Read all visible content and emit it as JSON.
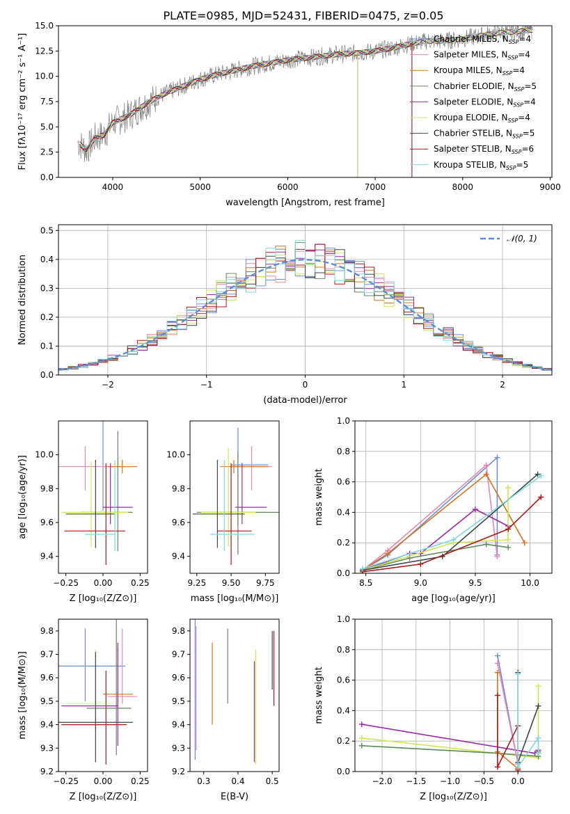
{
  "figure": {
    "title": "PLATE=0985, MJD=52431, FIBERID=0475, z=0.05"
  },
  "chart_data": [
    {
      "id": "spectrum",
      "type": "line",
      "xlabel": "wavelength [Angstrom, rest frame]",
      "ylabel": "Flux [fλ10⁻¹⁷ erg cm⁻² s⁻¹ A⁻¹]",
      "xlim": [
        3380,
        9020
      ],
      "ylim": [
        0,
        15
      ],
      "xticks": [
        4000,
        5000,
        6000,
        7000,
        8000,
        9000
      ],
      "yticks": [
        0.0,
        2.5,
        5.0,
        7.5,
        10.0,
        12.5,
        15.0
      ],
      "grid": false,
      "legend_position": "top-right",
      "data_envelope": {
        "x": [
          3600,
          3700,
          3800,
          3900,
          4000,
          4200,
          4400,
          4600,
          4800,
          5000,
          5200,
          5400,
          5600,
          5800,
          6000,
          6200,
          6400,
          6600,
          6800,
          7000,
          7200,
          7400,
          7600,
          7800,
          8000,
          8200,
          8400,
          8600,
          8800
        ],
        "y": [
          3.5,
          2.7,
          3.9,
          4.2,
          5.4,
          6.2,
          7.4,
          8.3,
          9.0,
          9.7,
          10.2,
          10.6,
          11.0,
          11.3,
          11.6,
          11.8,
          12.0,
          12.2,
          12.3,
          12.5,
          12.8,
          13.2,
          13.5,
          13.5,
          13.7,
          14.0,
          14.3,
          14.4,
          14.6
        ]
      },
      "legend": [
        {
          "label": "Chabrier MILES, N",
          "sub": "SSP",
          "suffix": "=4",
          "color": "#6a8fd8"
        },
        {
          "label": "Salpeter MILES, N",
          "sub": "SSP",
          "suffix": "=4",
          "color": "#e887b2"
        },
        {
          "label": "Kroupa MILES, N",
          "sub": "SSP",
          "suffix": "=4",
          "color": "#d9711b"
        },
        {
          "label": "Chabrier ELODIE, N",
          "sub": "SSP",
          "suffix": "=5",
          "color": "#5d8a5a"
        },
        {
          "label": "Salpeter ELODIE, N",
          "sub": "SSP",
          "suffix": "=4",
          "color": "#9b28a8"
        },
        {
          "label": "Kroupa ELODIE, N",
          "sub": "SSP",
          "suffix": "=4",
          "color": "#d0e84e"
        },
        {
          "label": "Chabrier STELIB, N",
          "sub": "SSP",
          "suffix": "=5",
          "color": "#37474a"
        },
        {
          "label": "Salpeter STELIB, N",
          "sub": "SSP",
          "suffix": "=6",
          "color": "#b01414"
        },
        {
          "label": "Kroupa STELIB, N",
          "sub": "SSP",
          "suffix": "=5",
          "color": "#7fd8dd"
        }
      ]
    },
    {
      "id": "residual-hist",
      "type": "line",
      "xlabel": "(data-model)/error",
      "ylabel": "Normed distribution",
      "xlim": [
        -2.5,
        2.5
      ],
      "ylim": [
        0,
        0.52
      ],
      "xticks": [
        -2,
        -1,
        0,
        1,
        2
      ],
      "xtick_labels": [
        "−2",
        "−1",
        "0",
        "1",
        "2"
      ],
      "yticks": [
        0.0,
        0.1,
        0.2,
        0.3,
        0.4,
        0.5
      ],
      "grid": true,
      "legend_position": "top-right",
      "gaussian_label": "𝒩(0, 1)",
      "gaussian_color": "#5b8ed6"
    },
    {
      "id": "age-vs-Z",
      "type": "scatter",
      "xlabel": "Z [log₁₀(Z/Z⊙)]",
      "ylabel": "age  [log₁₀(age/yr)]",
      "xlim": [
        -0.3,
        0.3
      ],
      "ylim": [
        9.3,
        10.2
      ],
      "xticks": [
        -0.25,
        0.0,
        0.25
      ],
      "xtick_labels": [
        "−0.25",
        "0.00",
        "0.25"
      ],
      "yticks": [
        9.4,
        9.6,
        9.8,
        10.0
      ],
      "points": [
        {
          "x": 0.0,
          "y": 9.94,
          "xerr": [
            0.0,
            0.0
          ],
          "yerr": [
            0.27,
            0.35
          ]
        },
        {
          "x": -0.12,
          "y": 9.93,
          "xerr": [
            0.27,
            0.27
          ],
          "yerr": [
            0.14,
            0.12
          ]
        },
        {
          "x": 0.13,
          "y": 9.93,
          "xerr": [
            0.1,
            0.1
          ],
          "yerr": [
            0.04,
            0.04
          ]
        },
        {
          "x": 0.1,
          "y": 9.66,
          "xerr": [
            0.25,
            0.1
          ],
          "yerr": [
            0.23,
            0.48
          ]
        },
        {
          "x": 0.05,
          "y": 9.69,
          "xerr": [
            0.05,
            0.15
          ],
          "yerr": [
            0.1,
            0.26
          ]
        },
        {
          "x": -0.08,
          "y": 9.66,
          "xerr": [
            0.2,
            0.25
          ],
          "yerr": [
            0.2,
            0.3
          ]
        },
        {
          "x": -0.05,
          "y": 9.65,
          "xerr": [
            0.2,
            0.13
          ],
          "yerr": [
            0.2,
            0.32
          ]
        },
        {
          "x": 0.02,
          "y": 9.55,
          "xerr": [
            0.28,
            0.13
          ],
          "yerr": [
            0.2,
            0.4
          ]
        },
        {
          "x": 0.08,
          "y": 9.53,
          "xerr": [
            0.2,
            0.0
          ],
          "yerr": [
            0.1,
            0.44
          ]
        }
      ]
    },
    {
      "id": "age-vs-mass",
      "type": "scatter",
      "xlabel": "mass [log₁₀(M/M⊙)]",
      "ylabel": "",
      "xlim": [
        9.2,
        9.85
      ],
      "ylim": [
        9.3,
        10.2
      ],
      "xticks": [
        9.25,
        9.5,
        9.75
      ],
      "xtick_labels": [
        "9.25",
        "9.50",
        "9.75"
      ],
      "yticks": [
        9.4,
        9.6,
        9.8,
        10.0
      ],
      "points": [
        {
          "x": 9.55,
          "y": 9.94,
          "xerr": [
            0.05,
            0.22
          ],
          "yerr": [
            0.36,
            0.22
          ]
        },
        {
          "x": 9.65,
          "y": 9.93,
          "xerr": [
            0.15,
            0.15
          ],
          "yerr": [
            0.14,
            0.12
          ]
        },
        {
          "x": 9.52,
          "y": 9.93,
          "xerr": [
            0.1,
            0.25
          ],
          "yerr": [
            0.04,
            0.04
          ]
        },
        {
          "x": 9.55,
          "y": 9.66,
          "xerr": [
            0.3,
            0.3
          ],
          "yerr": [
            0.25,
            0.36
          ]
        },
        {
          "x": 9.58,
          "y": 9.69,
          "xerr": [
            0.05,
            0.18
          ],
          "yerr": [
            0.1,
            0.26
          ]
        },
        {
          "x": 9.48,
          "y": 9.66,
          "xerr": [
            0.2,
            0.2
          ],
          "yerr": [
            0.2,
            0.38
          ]
        },
        {
          "x": 9.4,
          "y": 9.65,
          "xerr": [
            0.18,
            0.2
          ],
          "yerr": [
            0.2,
            0.32
          ]
        },
        {
          "x": 9.5,
          "y": 9.55,
          "xerr": [
            0.1,
            0.15
          ],
          "yerr": [
            0.2,
            0.4
          ]
        },
        {
          "x": 9.45,
          "y": 9.53,
          "xerr": [
            0.1,
            0.22
          ],
          "yerr": [
            0.1,
            0.44
          ]
        }
      ]
    },
    {
      "id": "massweight-vs-age",
      "type": "line",
      "xlabel": "age  [log₁₀(age/yr)]",
      "ylabel": "mass weight",
      "xlim": [
        8.4,
        10.2
      ],
      "ylim": [
        0,
        1.0
      ],
      "xticks": [
        8.5,
        9.0,
        9.5,
        10.0
      ],
      "yticks": [
        0.0,
        0.2,
        0.4,
        0.6,
        0.8,
        1.0
      ],
      "grid": true,
      "series": [
        {
          "x": [
            8.47,
            8.7,
            9.7,
            9.7
          ],
          "y": [
            0.02,
            0.12,
            0.76,
            0.12
          ],
          "color": "#6a8fd8"
        },
        {
          "x": [
            8.47,
            8.7,
            9.6,
            9.7
          ],
          "y": [
            0.02,
            0.15,
            0.71,
            0.11
          ],
          "color": "#e887b2"
        },
        {
          "x": [
            8.47,
            8.7,
            9.6,
            9.95
          ],
          "y": [
            0.02,
            0.13,
            0.65,
            0.2
          ],
          "color": "#d9711b"
        },
        {
          "x": [
            8.47,
            8.9,
            9.6,
            9.8
          ],
          "y": [
            0.02,
            0.1,
            0.19,
            0.17
          ],
          "color": "#5d8a5a"
        },
        {
          "x": [
            8.47,
            8.9,
            9.0,
            9.5,
            9.8
          ],
          "y": [
            0.02,
            0.13,
            0.13,
            0.42,
            0.31
          ],
          "color": "#9b28a8"
        },
        {
          "x": [
            8.47,
            9.3,
            9.8,
            9.8
          ],
          "y": [
            0.02,
            0.2,
            0.22,
            0.56
          ],
          "color": "#d0e84e"
        },
        {
          "x": [
            8.47,
            9.2,
            10.07
          ],
          "y": [
            0.02,
            0.11,
            0.65
          ],
          "color": "#37474a"
        },
        {
          "x": [
            8.47,
            9.0,
            9.8,
            10.1
          ],
          "y": [
            0.01,
            0.06,
            0.29,
            0.5
          ],
          "color": "#b01414"
        },
        {
          "x": [
            8.47,
            9.3,
            10.1
          ],
          "y": [
            0.03,
            0.22,
            0.64
          ],
          "color": "#7fd8dd"
        }
      ]
    },
    {
      "id": "mass-vs-Z",
      "type": "scatter",
      "xlabel": "Z [log₁₀(Z/Z⊙)]",
      "ylabel": "mass [log₁₀(M/M⊙)]",
      "xlim": [
        -0.3,
        0.3
      ],
      "ylim": [
        9.2,
        9.85
      ],
      "xticks": [
        -0.25,
        0.0,
        0.25
      ],
      "xtick_labels": [
        "−0.25",
        "0.00",
        "0.25"
      ],
      "yticks": [
        9.2,
        9.3,
        9.4,
        9.5,
        9.6,
        9.7,
        9.8
      ],
      "points": [
        {
          "x": -0.12,
          "y": 9.65,
          "xerr": [
            0.27,
            0.27
          ],
          "yerr": [
            0.15,
            0.16
          ]
        },
        {
          "x": 0.13,
          "y": 9.52,
          "xerr": [
            0.1,
            0.1
          ],
          "yerr": [
            0.03,
            0.29
          ]
        },
        {
          "x": 0.1,
          "y": 9.53,
          "xerr": [
            0.1,
            0.1
          ],
          "yerr": [
            0.05,
            0.2
          ]
        },
        {
          "x": 0.09,
          "y": 9.47,
          "xerr": [
            0.2,
            0.1
          ],
          "yerr": [
            0.2,
            0.38
          ]
        },
        {
          "x": 0.1,
          "y": 9.48,
          "xerr": [
            0.38,
            0.0
          ],
          "yerr": [
            0.17,
            0.27
          ]
        },
        {
          "x": -0.05,
          "y": 9.48,
          "xerr": [
            0.0,
            0.0
          ],
          "yerr": [
            0.11,
            0.24
          ]
        },
        {
          "x": -0.05,
          "y": 9.41,
          "xerr": [
            0.3,
            0.25
          ],
          "yerr": [
            0.17,
            0.3
          ]
        },
        {
          "x": 0.02,
          "y": 9.4,
          "xerr": [
            0.3,
            0.14
          ],
          "yerr": [
            0.17,
            0.23
          ]
        }
      ]
    },
    {
      "id": "mass-vs-EBV",
      "type": "scatter",
      "xlabel": "E(B-V)",
      "ylabel": "",
      "xlim": [
        0.26,
        0.52
      ],
      "ylim": [
        9.2,
        9.85
      ],
      "xticks": [
        0.3,
        0.4,
        0.5
      ],
      "xtick_labels": [
        "0.3",
        "0.4",
        "0.5"
      ],
      "yticks": [
        9.2,
        9.3,
        9.4,
        9.5,
        9.6,
        9.7,
        9.8
      ],
      "points": [
        {
          "x": 0.275,
          "y": 9.55,
          "xerr": [
            0,
            0
          ],
          "yerr": [
            0.3,
            0.3
          ]
        },
        {
          "x": 0.278,
          "y": 9.55,
          "xerr": [
            0,
            0
          ],
          "yerr": [
            0.26,
            0.27
          ]
        },
        {
          "x": 0.325,
          "y": 9.57,
          "xerr": [
            0,
            0
          ],
          "yerr": [
            0.17,
            0.18
          ]
        },
        {
          "x": 0.37,
          "y": 9.65,
          "xerr": [
            0,
            0
          ],
          "yerr": [
            0.16,
            0.16
          ]
        },
        {
          "x": 0.448,
          "y": 9.45,
          "xerr": [
            0,
            0
          ],
          "yerr": [
            0.21,
            0.22
          ]
        },
        {
          "x": 0.452,
          "y": 9.45,
          "xerr": [
            0,
            0
          ],
          "yerr": [
            0.22,
            0.27
          ]
        },
        {
          "x": 0.5,
          "y": 9.65,
          "xerr": [
            0,
            0
          ],
          "yerr": [
            0.1,
            0.15
          ]
        },
        {
          "x": 0.505,
          "y": 9.62,
          "xerr": [
            0,
            0
          ],
          "yerr": [
            0.14,
            0.18
          ]
        }
      ]
    },
    {
      "id": "massweight-vs-Z",
      "type": "line",
      "xlabel": "Z [log₁₀(Z/Z⊙)]",
      "ylabel": "mass weight",
      "xlim": [
        -2.4,
        0.5
      ],
      "ylim": [
        0,
        1.0
      ],
      "xticks": [
        -2.0,
        -1.5,
        -1.0,
        -0.5,
        0.0
      ],
      "xtick_labels": [
        "−2.0",
        "−1.5",
        "−1.0",
        "−0.5",
        "0.0"
      ],
      "yticks": [
        0.0,
        0.2,
        0.4,
        0.6,
        0.8,
        1.0
      ],
      "grid": true,
      "series": [
        {
          "x": [
            -2.3,
            0.25,
            0.3
          ],
          "y": [
            0.31,
            0.12,
            0.14
          ],
          "color": "#9b28a8"
        },
        {
          "x": [
            -2.3,
            0.3,
            0.3
          ],
          "y": [
            0.22,
            0.09,
            0.56
          ],
          "color": "#d0e84e"
        },
        {
          "x": [
            -2.3,
            -0.3,
            0.3,
            0.3
          ],
          "y": [
            0.17,
            0.12,
            0.1,
            0.13
          ],
          "color": "#5d8a5a"
        },
        {
          "x": [
            -0.3,
            0.0,
            0.0
          ],
          "y": [
            0.76,
            0.05,
            0.02
          ],
          "color": "#6a8fd8"
        },
        {
          "x": [
            -0.3,
            0.0,
            0.0
          ],
          "y": [
            0.71,
            0.05,
            0.11
          ],
          "color": "#e887b2"
        },
        {
          "x": [
            -0.3,
            -0.3,
            0.0
          ],
          "y": [
            0.65,
            0.13,
            0.02
          ],
          "color": "#d9711b"
        },
        {
          "x": [
            -0.3,
            -0.3,
            0.0,
            0.0
          ],
          "y": [
            0.5,
            0.03,
            0.3,
            0.01
          ],
          "color": "#b01414"
        },
        {
          "x": [
            0.0,
            0.0,
            0.3
          ],
          "y": [
            0.65,
            0.06,
            0.43
          ],
          "color": "#37474a"
        },
        {
          "x": [
            0.0,
            0.0,
            0.3,
            0.3
          ],
          "y": [
            0.64,
            0.03,
            0.22,
            0.12
          ],
          "color": "#7fd8dd"
        }
      ]
    }
  ]
}
